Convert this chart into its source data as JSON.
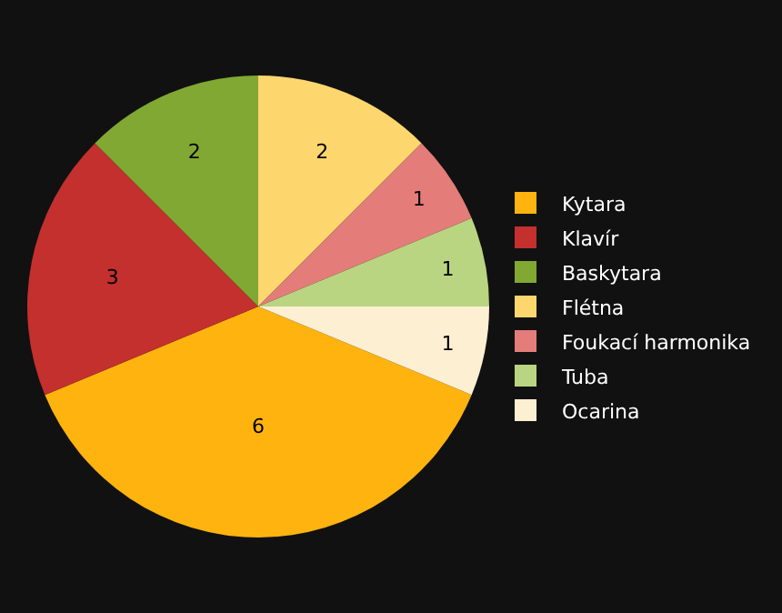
{
  "chart_data": {
    "type": "pie",
    "categories": [
      "Kytara",
      "Klavír",
      "Baskytara",
      "Flétna",
      "Foukací harmonika",
      "Tuba",
      "Ocarina"
    ],
    "values": [
      6,
      3,
      2,
      2,
      1,
      1,
      1
    ],
    "colors": [
      "#ffb30f",
      "#c3302e",
      "#80a833",
      "#fdd66e",
      "#e47c7a",
      "#b9d581",
      "#fdefd2"
    ],
    "data_labels": true,
    "legend": "right"
  }
}
